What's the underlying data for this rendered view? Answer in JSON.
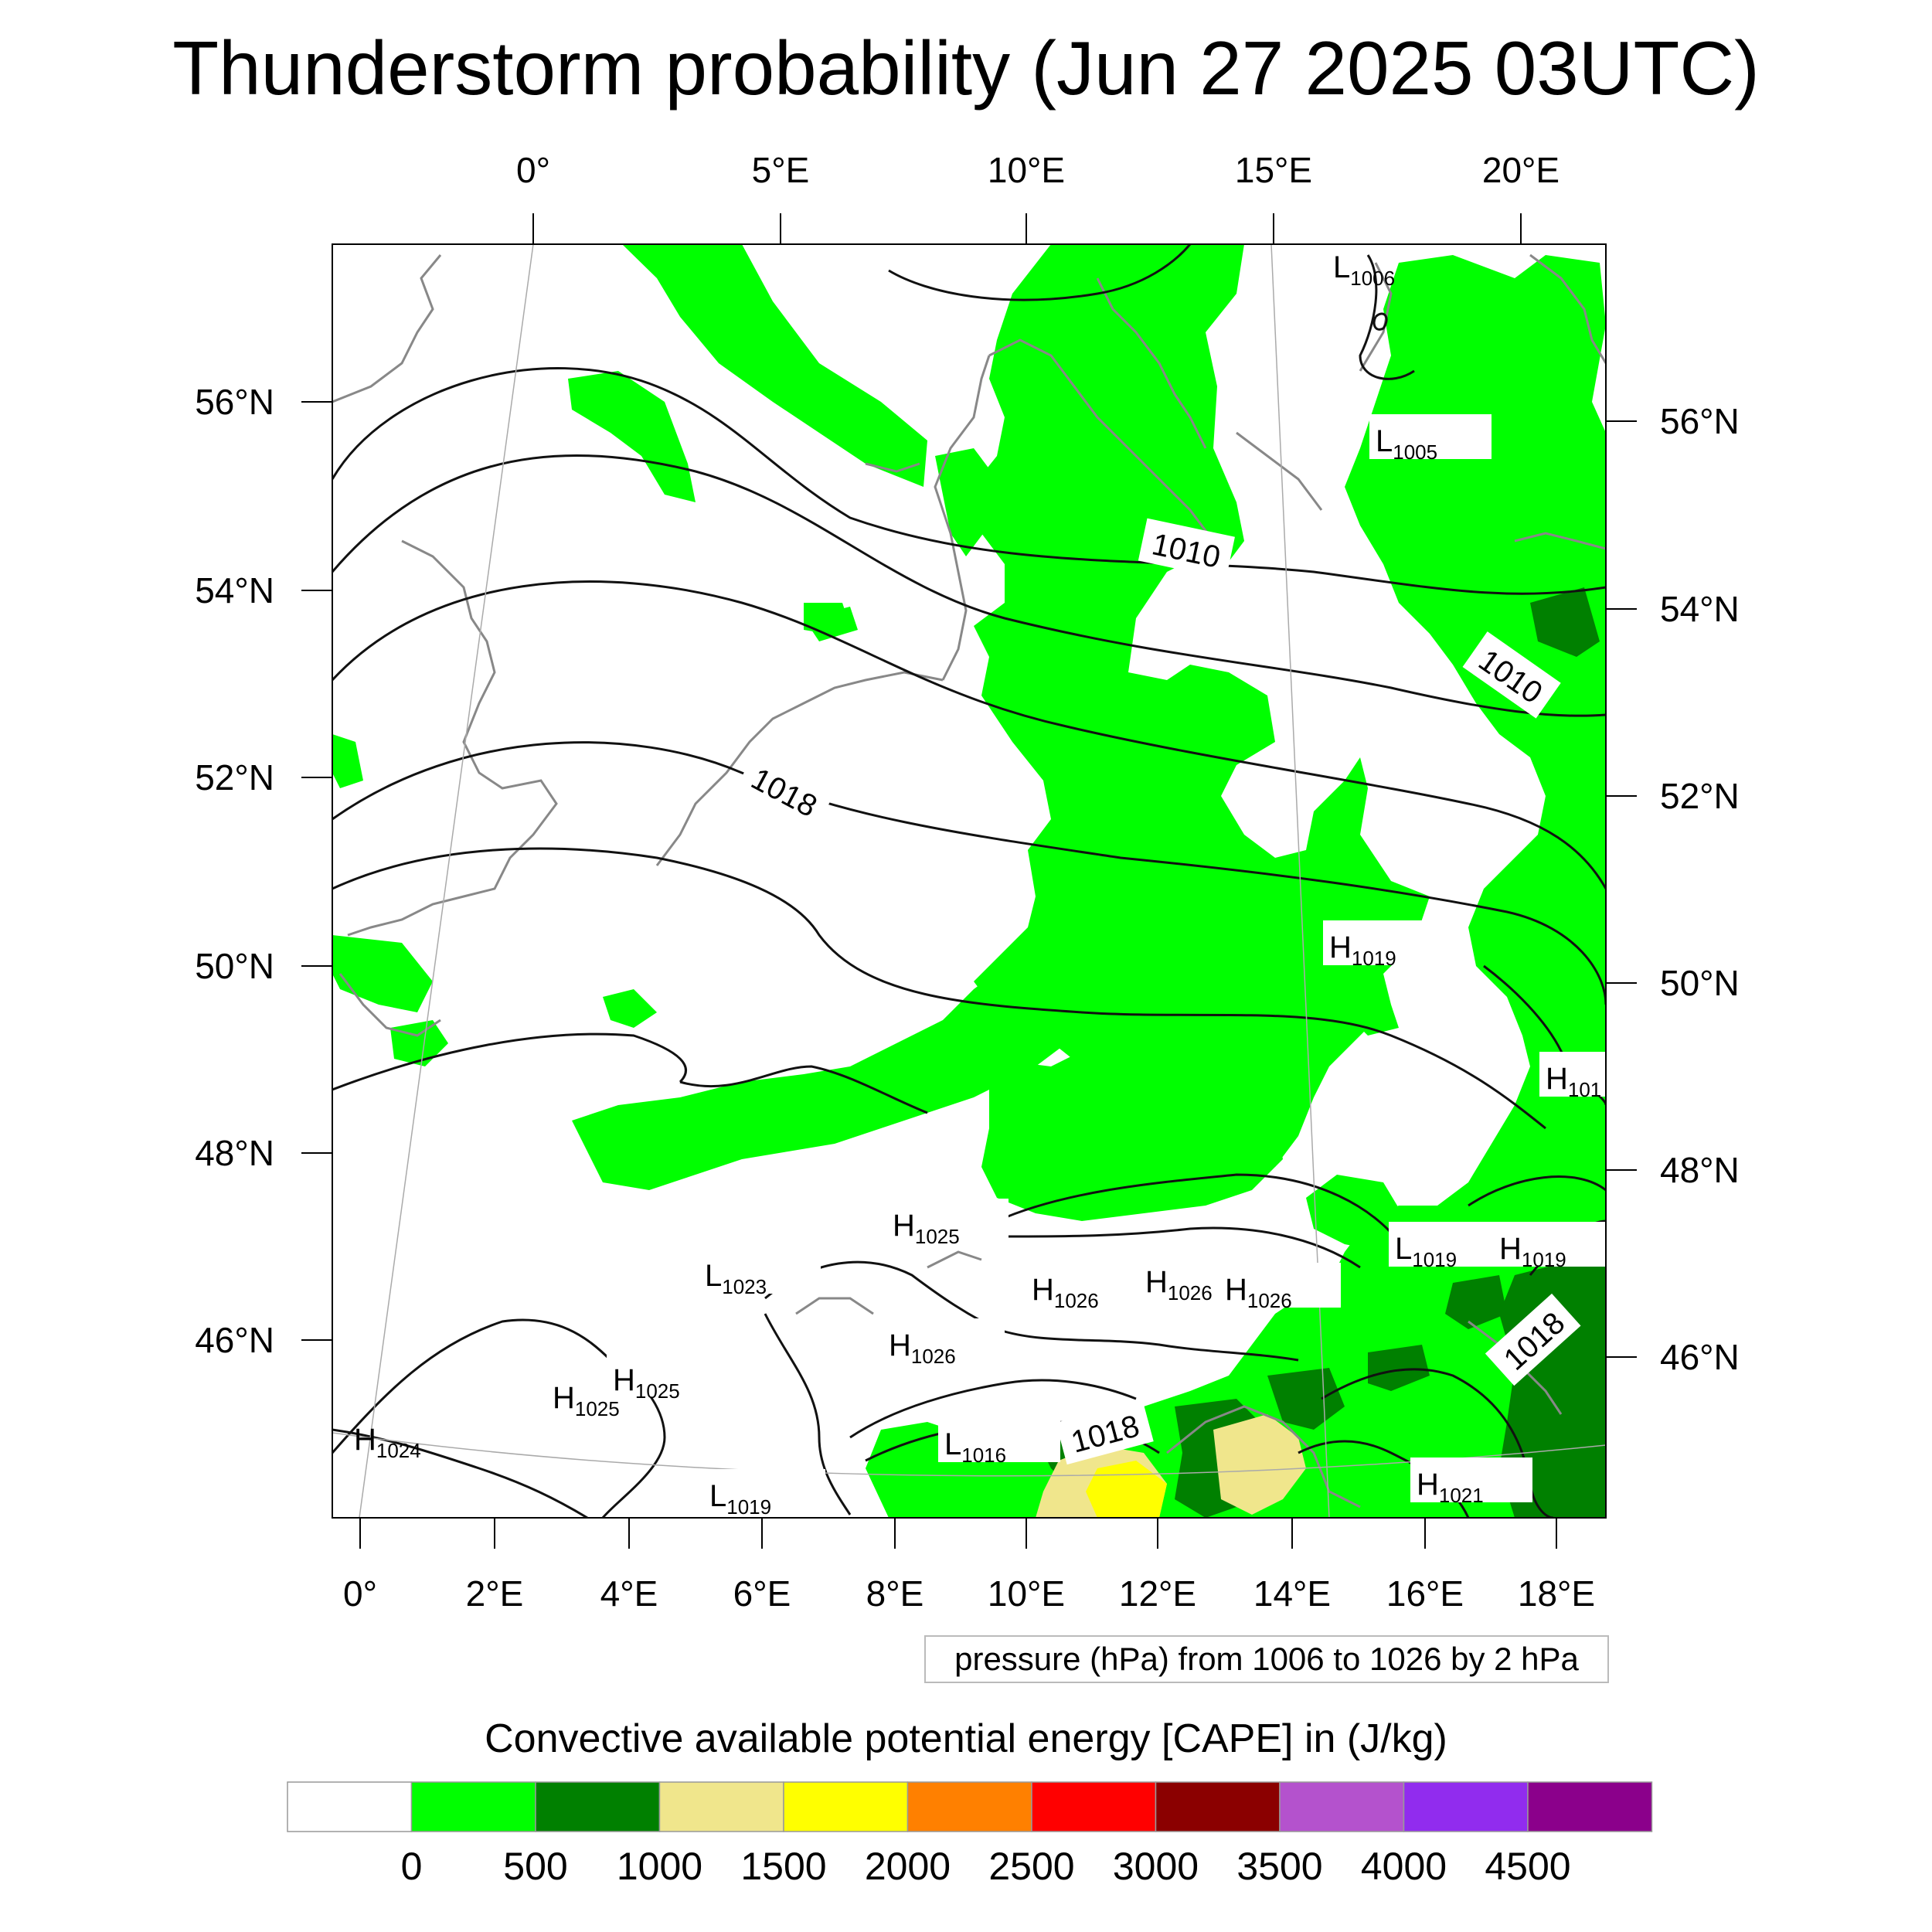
{
  "title": "Thunderstorm probability (Jun 27 2025 03UTC)",
  "map": {
    "top_lon_labels": [
      "0°",
      "5°E",
      "10°E",
      "15°E",
      "20°E"
    ],
    "bottom_lon_labels": [
      "0°",
      "2°E",
      "4°E",
      "6°E",
      "8°E",
      "10°E",
      "12°E",
      "14°E",
      "16°E",
      "18°E"
    ],
    "left_lat_labels": [
      "56°N",
      "54°N",
      "52°N",
      "50°N",
      "48°N",
      "46°N"
    ],
    "right_lat_labels": [
      "56°N",
      "54°N",
      "52°N",
      "50°N",
      "48°N",
      "46°N"
    ],
    "isobar_labels": [
      "1010",
      "1010",
      "1018",
      "1018",
      "1018"
    ],
    "pressure_centers": [
      {
        "type": "L",
        "value": "1006"
      },
      {
        "type": "L",
        "value": "1005"
      },
      {
        "type": "H",
        "value": "1019"
      },
      {
        "type": "H",
        "value": "101"
      },
      {
        "type": "H",
        "value": "1025"
      },
      {
        "type": "L",
        "value": "1019"
      },
      {
        "type": "H",
        "value": "1019"
      },
      {
        "type": "L",
        "value": "1023"
      },
      {
        "type": "H",
        "value": "1026"
      },
      {
        "type": "H",
        "value": "1026"
      },
      {
        "type": "H",
        "value": "1026"
      },
      {
        "type": "H",
        "value": "1026"
      },
      {
        "type": "H",
        "value": "1025"
      },
      {
        "type": "H",
        "value": "1025"
      },
      {
        "type": "H",
        "value": "1024"
      },
      {
        "type": "L",
        "value": "1016"
      },
      {
        "type": "L",
        "value": "1019"
      },
      {
        "type": "H",
        "value": "1021"
      }
    ]
  },
  "pressure_note": "pressure (hPa) from 1006 to 1026 by 2 hPa",
  "legend": {
    "title": "Convective available potential energy [CAPE] in (J/kg)",
    "colors": [
      "#ffffff",
      "#00ff00",
      "#008000",
      "#f0e68c",
      "#ffff00",
      "#ff8000",
      "#ff0000",
      "#8b0000",
      "#b452cd",
      "#912cee",
      "#8b008b"
    ],
    "tick_labels": [
      "0",
      "500",
      "1000",
      "1500",
      "2000",
      "2500",
      "3000",
      "3500",
      "4000",
      "4500"
    ]
  }
}
